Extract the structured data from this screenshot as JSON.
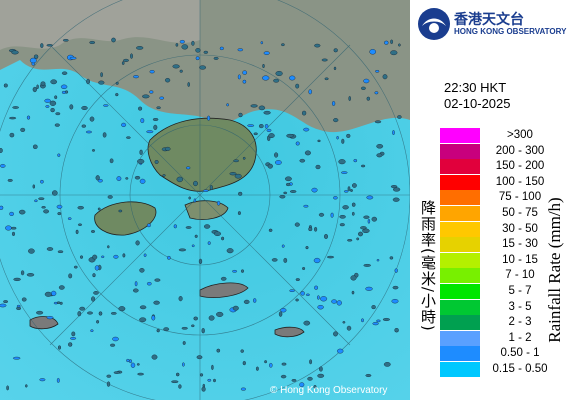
{
  "header": {
    "logo_text_zh": "香港天文台",
    "logo_text_en": "HONG KONG OBSERVATORY"
  },
  "timestamp": {
    "time": "22:30 HKT",
    "date": "02-10-2025"
  },
  "legend": {
    "title": "Rainfall Rate (mm/h)",
    "title_zh": "降雨率(毫米/小時)",
    "items": [
      {
        "label": ">300",
        "color": "#ff00ff"
      },
      {
        "label": "200 - 300",
        "color": "#c8007d"
      },
      {
        "label": "150 - 200",
        "color": "#e1003c"
      },
      {
        "label": "100 - 150",
        "color": "#ff0000"
      },
      {
        "label": "75 - 100",
        "color": "#ff6e00"
      },
      {
        "label": "50 - 75",
        "color": "#ffa500"
      },
      {
        "label": "30 - 50",
        "color": "#ffc800"
      },
      {
        "label": "15 - 30",
        "color": "#e6d200"
      },
      {
        "label": "10 - 15",
        "color": "#b4f000"
      },
      {
        "label": "7 - 10",
        "color": "#78f000"
      },
      {
        "label": "5 - 7",
        "color": "#00e600"
      },
      {
        "label": "3 - 5",
        "color": "#00c832"
      },
      {
        "label": "2 - 3",
        "color": "#00a050"
      },
      {
        "label": "1 - 2",
        "color": "#5aa0ff"
      },
      {
        "label": "0.50 - 1",
        "color": "#1e8cff"
      },
      {
        "label": "0.15 - 0.50",
        "color": "#00c8ff"
      }
    ]
  },
  "copyright": "© Hong Kong Observatory"
}
